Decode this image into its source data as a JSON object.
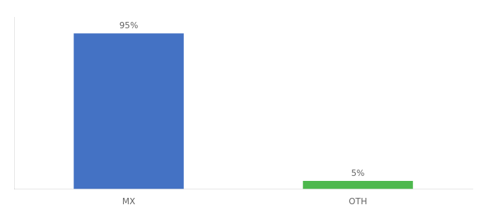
{
  "chart_data": {
    "type": "bar",
    "categories": [
      "MX",
      "OTH"
    ],
    "values": [
      95,
      5
    ],
    "value_labels": [
      "95%",
      "5%"
    ],
    "colors": [
      "#4472c4",
      "#4db84d"
    ],
    "ylim": [
      0,
      105
    ],
    "data_labels": true,
    "tick_labels": "x",
    "grid": false
  }
}
